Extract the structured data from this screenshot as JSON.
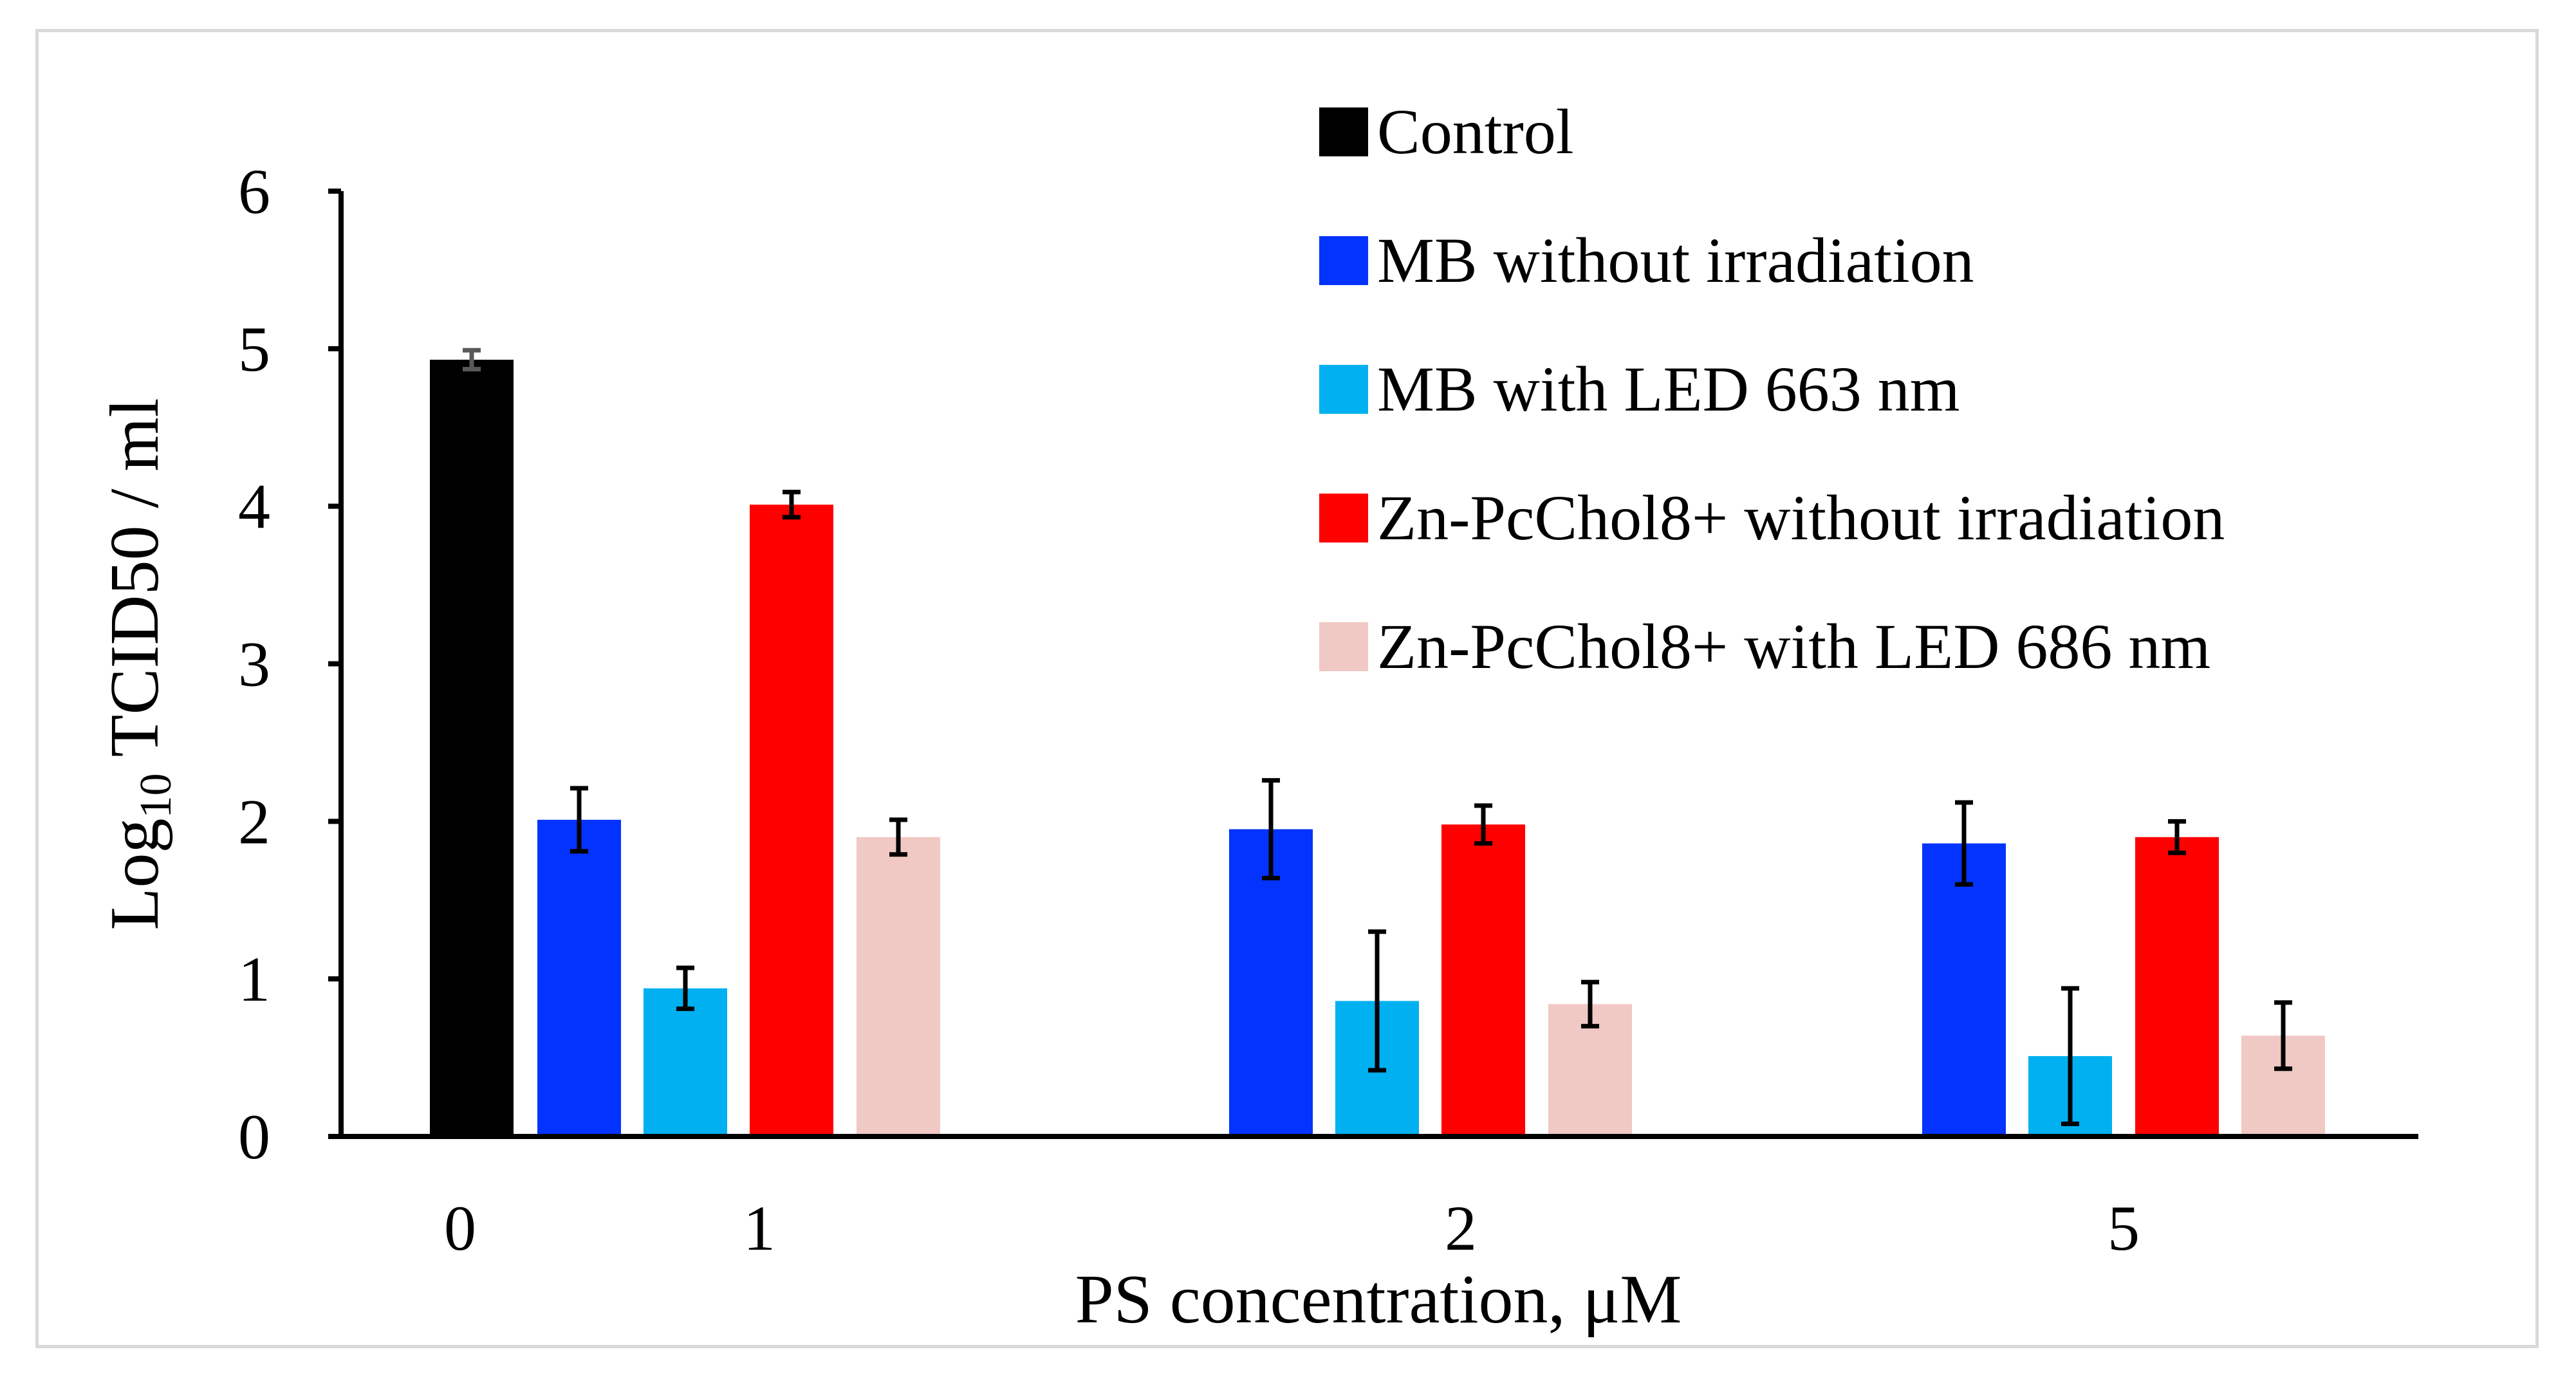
{
  "chart_data": {
    "type": "bar",
    "title": "",
    "xlabel": "PS concentration, μM",
    "ylabel": {
      "base": "Log",
      "subscript": "10",
      "rest": " TCID50 / ml"
    },
    "ylim": [
      0,
      6
    ],
    "yticks": [
      0,
      1,
      2,
      3,
      4,
      5,
      6
    ],
    "groups": [
      {
        "label": "0",
        "bars": [
          {
            "series": "Control",
            "value": 4.93,
            "error": 0.06
          }
        ]
      },
      {
        "label": "1",
        "bars": [
          {
            "series": "MB without irradiation",
            "value": 2.01,
            "error": 0.2
          },
          {
            "series": "MB with LED 663 nm",
            "value": 0.94,
            "error": 0.13
          },
          {
            "series": "Zn-PcChol8+ without irradiation",
            "value": 4.01,
            "error": 0.08
          },
          {
            "series": "Zn-PcChol8+ with LED 686 nm",
            "value": 1.9,
            "error": 0.11
          }
        ]
      },
      {
        "label": "2",
        "bars": [
          {
            "series": "MB without irradiation",
            "value": 1.95,
            "error": 0.31
          },
          {
            "series": "MB with LED 663 nm",
            "value": 0.86,
            "error": 0.44
          },
          {
            "series": "Zn-PcChol8+ without irradiation",
            "value": 1.98,
            "error": 0.12
          },
          {
            "series": "Zn-PcChol8+ with LED 686 nm",
            "value": 0.84,
            "error": 0.14
          }
        ]
      },
      {
        "label": "5",
        "bars": [
          {
            "series": "MB without irradiation",
            "value": 1.86,
            "error": 0.26
          },
          {
            "series": "MB with LED 663 nm",
            "value": 0.51,
            "error": 0.43
          },
          {
            "series": "Zn-PcChol8+ without irradiation",
            "value": 1.9,
            "error": 0.1
          },
          {
            "series": "Zn-PcChol8+ with LED 686 nm",
            "value": 0.64,
            "error": 0.21
          }
        ]
      }
    ],
    "legend": {
      "position": "top-right",
      "entries": [
        {
          "name": "Control",
          "color": "#000000"
        },
        {
          "name": "MB without irradiation",
          "color": "#0433ff"
        },
        {
          "name": "MB with LED 663 nm",
          "color": "#00b0f0"
        },
        {
          "name": "Zn-PcChol8+ without irradiation",
          "color": "#ff0000"
        },
        {
          "name": "Zn-PcChol8+ with LED 686 nm",
          "color": "#f0c8c4"
        }
      ]
    }
  }
}
